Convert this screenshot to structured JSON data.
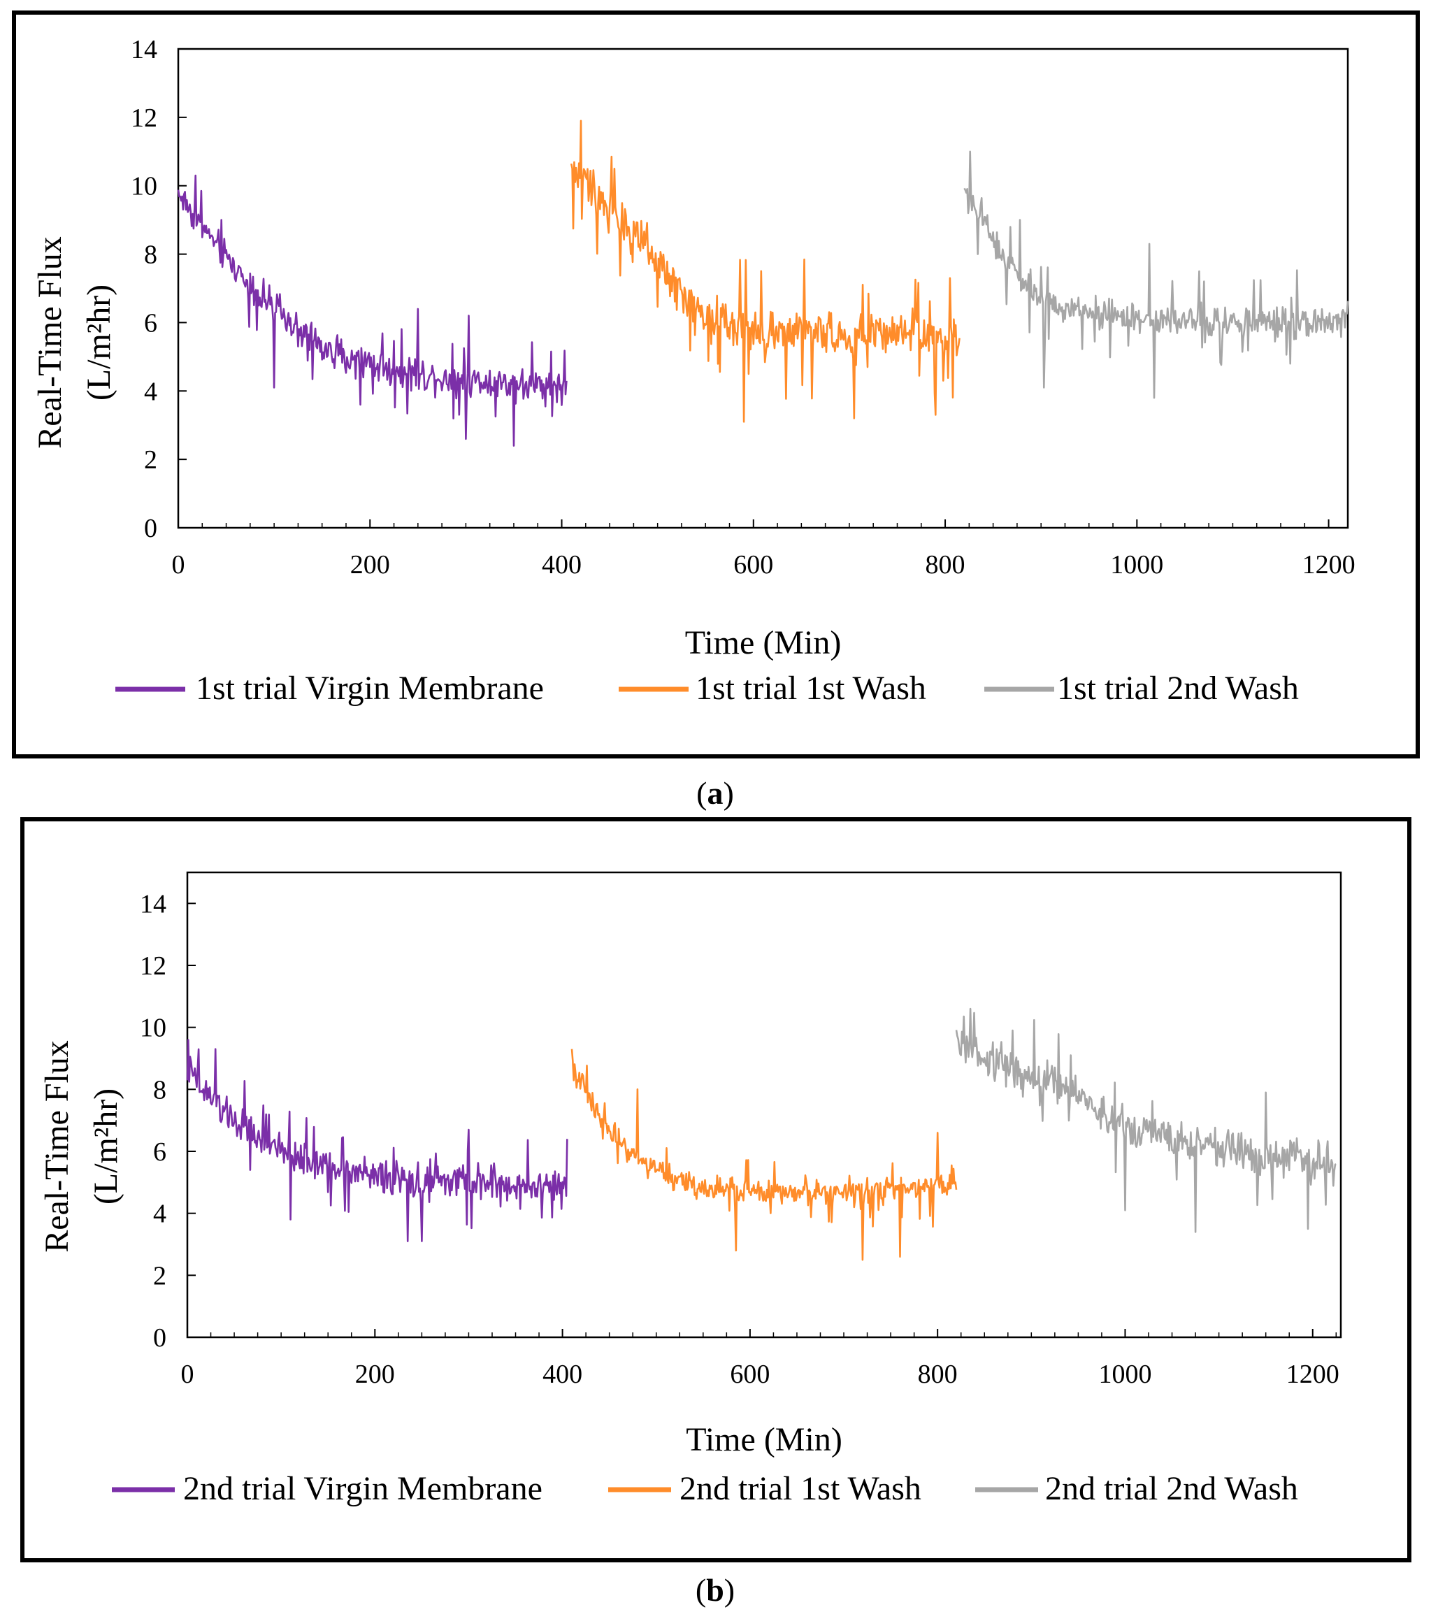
{
  "chart_data": [
    {
      "panel": "a",
      "caption": "a",
      "type": "line",
      "xlabel": "Time (Min)",
      "ylabel_line1": "Real-Time Flux",
      "ylabel_line2": "(L/m²hr)",
      "xlim": [
        0,
        1220
      ],
      "ylim": [
        0,
        14
      ],
      "xticks": [
        0,
        200,
        400,
        600,
        800,
        1000,
        1200
      ],
      "yticks": [
        0,
        2,
        4,
        6,
        8,
        10,
        12,
        14
      ],
      "grid": false,
      "legend_position": "bottom",
      "series": [
        {
          "name": "1st trial Virgin Membrane",
          "color": "#7B2FA8",
          "x": [
            0,
            25,
            50,
            75,
            100,
            125,
            150,
            175,
            200,
            225,
            250,
            275,
            300,
            325,
            350,
            375,
            405
          ],
          "y": [
            9.8,
            8.8,
            7.9,
            7.1,
            6.4,
            5.8,
            5.3,
            5.0,
            4.8,
            4.6,
            4.5,
            4.4,
            4.3,
            4.3,
            4.2,
            4.2,
            4.1
          ],
          "noise": 0.7,
          "spikes": [
            [
              18,
              10.3
            ],
            [
              45,
              9.0
            ],
            [
              100,
              4.1
            ],
            [
              190,
              3.6
            ],
            [
              250,
              6.4
            ],
            [
              300,
              2.6
            ],
            [
              303,
              6.2
            ],
            [
              350,
              2.4
            ]
          ]
        },
        {
          "name": "1st trial 1st Wash",
          "color": "#FF8C2A",
          "x": [
            410,
            430,
            460,
            490,
            520,
            550,
            580,
            610,
            640,
            670,
            700,
            730,
            760,
            790,
            815
          ],
          "y": [
            10.5,
            10.0,
            9.0,
            8.0,
            7.0,
            6.2,
            5.9,
            5.8,
            5.7,
            5.7,
            5.6,
            5.6,
            5.6,
            5.5,
            5.5
          ],
          "noise": 1.0,
          "spikes": [
            [
              420,
              11.9
            ],
            [
              455,
              10.5
            ],
            [
              590,
              3.1
            ],
            [
              705,
              3.2
            ],
            [
              790,
              3.3
            ],
            [
              805,
              7.3
            ]
          ]
        },
        {
          "name": "1st trial 2nd Wash",
          "color": "#A6A6A6",
          "x": [
            820,
            840,
            860,
            880,
            900,
            930,
            960,
            1000,
            1050,
            1100,
            1150,
            1200,
            1220
          ],
          "y": [
            9.8,
            9.0,
            8.0,
            7.2,
            6.6,
            6.3,
            6.2,
            6.1,
            6.1,
            6.0,
            6.0,
            6.0,
            6.1
          ],
          "noise": 0.7,
          "spikes": [
            [
              826,
              11.0
            ],
            [
              834,
              8.0
            ],
            [
              878,
              9.0
            ],
            [
              903,
              4.1
            ],
            [
              1013,
              8.3
            ],
            [
              1018,
              3.8
            ],
            [
              1065,
              7.5
            ]
          ]
        }
      ]
    },
    {
      "panel": "b",
      "caption": "b",
      "type": "line",
      "xlabel": "Time (Min)",
      "ylabel_line1": "Real-Time Flux",
      "ylabel_line2": "(L/m²hr)",
      "xlim": [
        0,
        1230
      ],
      "ylim": [
        0,
        15
      ],
      "xticks": [
        0,
        200,
        400,
        600,
        800,
        1000,
        1200
      ],
      "yticks": [
        0,
        2,
        4,
        6,
        8,
        10,
        12,
        14
      ],
      "grid": false,
      "legend_position": "bottom",
      "series": [
        {
          "name": "2nd trial Virgin Membrane",
          "color": "#7B2FA8",
          "x": [
            0,
            25,
            50,
            75,
            100,
            150,
            200,
            250,
            300,
            350,
            405
          ],
          "y": [
            8.6,
            7.7,
            7.0,
            6.4,
            6.0,
            5.5,
            5.2,
            5.0,
            5.0,
            4.9,
            4.9
          ],
          "noise": 0.8,
          "spikes": [
            [
              30,
              9.3
            ],
            [
              110,
              3.8
            ],
            [
              235,
              3.1
            ],
            [
              250,
              3.1
            ],
            [
              300,
              6.7
            ],
            [
              405,
              6.4
            ]
          ]
        },
        {
          "name": "2nd trial 1st Wash",
          "color": "#FF8C2A",
          "x": [
            410,
            430,
            450,
            480,
            510,
            540,
            570,
            600,
            650,
            700,
            750,
            800,
            820
          ],
          "y": [
            8.8,
            7.6,
            6.6,
            5.8,
            5.2,
            4.9,
            4.8,
            4.7,
            4.7,
            4.7,
            4.8,
            4.9,
            5.0
          ],
          "noise": 0.6,
          "spikes": [
            [
              410,
              9.3
            ],
            [
              480,
              8.0
            ],
            [
              585,
              2.8
            ],
            [
              720,
              2.5
            ],
            [
              760,
              2.6
            ],
            [
              800,
              6.6
            ]
          ]
        },
        {
          "name": "2nd trial 2nd Wash",
          "color": "#A6A6A6",
          "x": [
            820,
            850,
            900,
            950,
            965,
            1000,
            1050,
            1100,
            1150,
            1200,
            1225
          ],
          "y": [
            9.6,
            9.1,
            8.4,
            7.9,
            7.5,
            6.7,
            6.4,
            6.1,
            5.9,
            5.7,
            5.5
          ],
          "noise": 0.9,
          "spikes": [
            [
              835,
              10.6
            ],
            [
              880,
              9.9
            ],
            [
              1000,
              4.1
            ],
            [
              1075,
              3.4
            ],
            [
              1150,
              7.9
            ],
            [
              1195,
              3.5
            ]
          ]
        }
      ]
    }
  ]
}
